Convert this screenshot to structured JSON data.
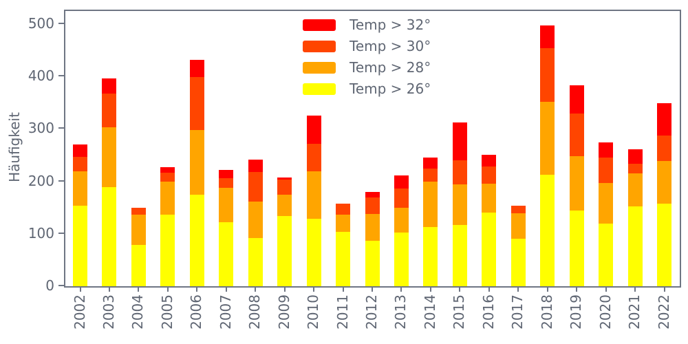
{
  "figure": {
    "ylabel": "Häufigkeit",
    "background_color": "#ffffff",
    "axis_color": "#6e7583",
    "text_color": "#5f6673",
    "y_ticks": [
      0,
      100,
      200,
      300,
      400,
      500
    ]
  },
  "legend": {
    "position": "upper center",
    "items": [
      {
        "label": "Temp > 32°",
        "color": "#ff0000",
        "swatch": "red-swatch"
      },
      {
        "label": "Temp > 30°",
        "color": "#ff4500",
        "swatch": "orangered-swatch"
      },
      {
        "label": "Temp > 28°",
        "color": "#ffa500",
        "swatch": "orange-swatch"
      },
      {
        "label": "Temp > 26°",
        "color": "#ffff00",
        "swatch": "yellow-swatch"
      }
    ]
  },
  "chart_data": {
    "type": "bar",
    "stacked": true,
    "title": "",
    "xlabel": "",
    "ylabel": "Häufigkeit",
    "ylim": [
      0,
      525
    ],
    "grid": false,
    "legend_position": "upper center",
    "categories": [
      "2002",
      "2003",
      "2004",
      "2005",
      "2006",
      "2007",
      "2008",
      "2009",
      "2010",
      "2011",
      "2012",
      "2013",
      "2014",
      "2015",
      "2016",
      "2017",
      "2018",
      "2019",
      "2020",
      "2021",
      "2022"
    ],
    "series": [
      {
        "name": "Temp > 26°",
        "color": "#ffff00",
        "values": [
          153,
          189,
          79,
          137,
          174,
          122,
          92,
          134,
          128,
          104,
          86,
          102,
          113,
          117,
          141,
          91,
          212,
          144,
          119,
          152,
          158
        ]
      },
      {
        "name": "Temp > 28°",
        "color": "#ffa500",
        "values": [
          66,
          114,
          58,
          63,
          124,
          66,
          70,
          41,
          91,
          33,
          52,
          48,
          87,
          77,
          55,
          48,
          140,
          104,
          78,
          63,
          81
        ]
      },
      {
        "name": "Temp > 30°",
        "color": "#ff4500",
        "values": [
          28,
          64,
          12,
          17,
          101,
          18,
          56,
          28,
          53,
          21,
          31,
          36,
          25,
          46,
          33,
          14,
          102,
          82,
          48,
          19,
          48
        ]
      },
      {
        "name": "Temp > 32°",
        "color": "#ff0000",
        "values": [
          24,
          30,
          0,
          10,
          33,
          16,
          24,
          4,
          54,
          0,
          11,
          25,
          21,
          72,
          22,
          0,
          43,
          53,
          30,
          27,
          62
        ]
      }
    ],
    "stack_totals": [
      271,
      397,
      149,
      227,
      432,
      222,
      242,
      207,
      326,
      158,
      180,
      211,
      246,
      312,
      251,
      153,
      497,
      383,
      275,
      261,
      349
    ]
  }
}
